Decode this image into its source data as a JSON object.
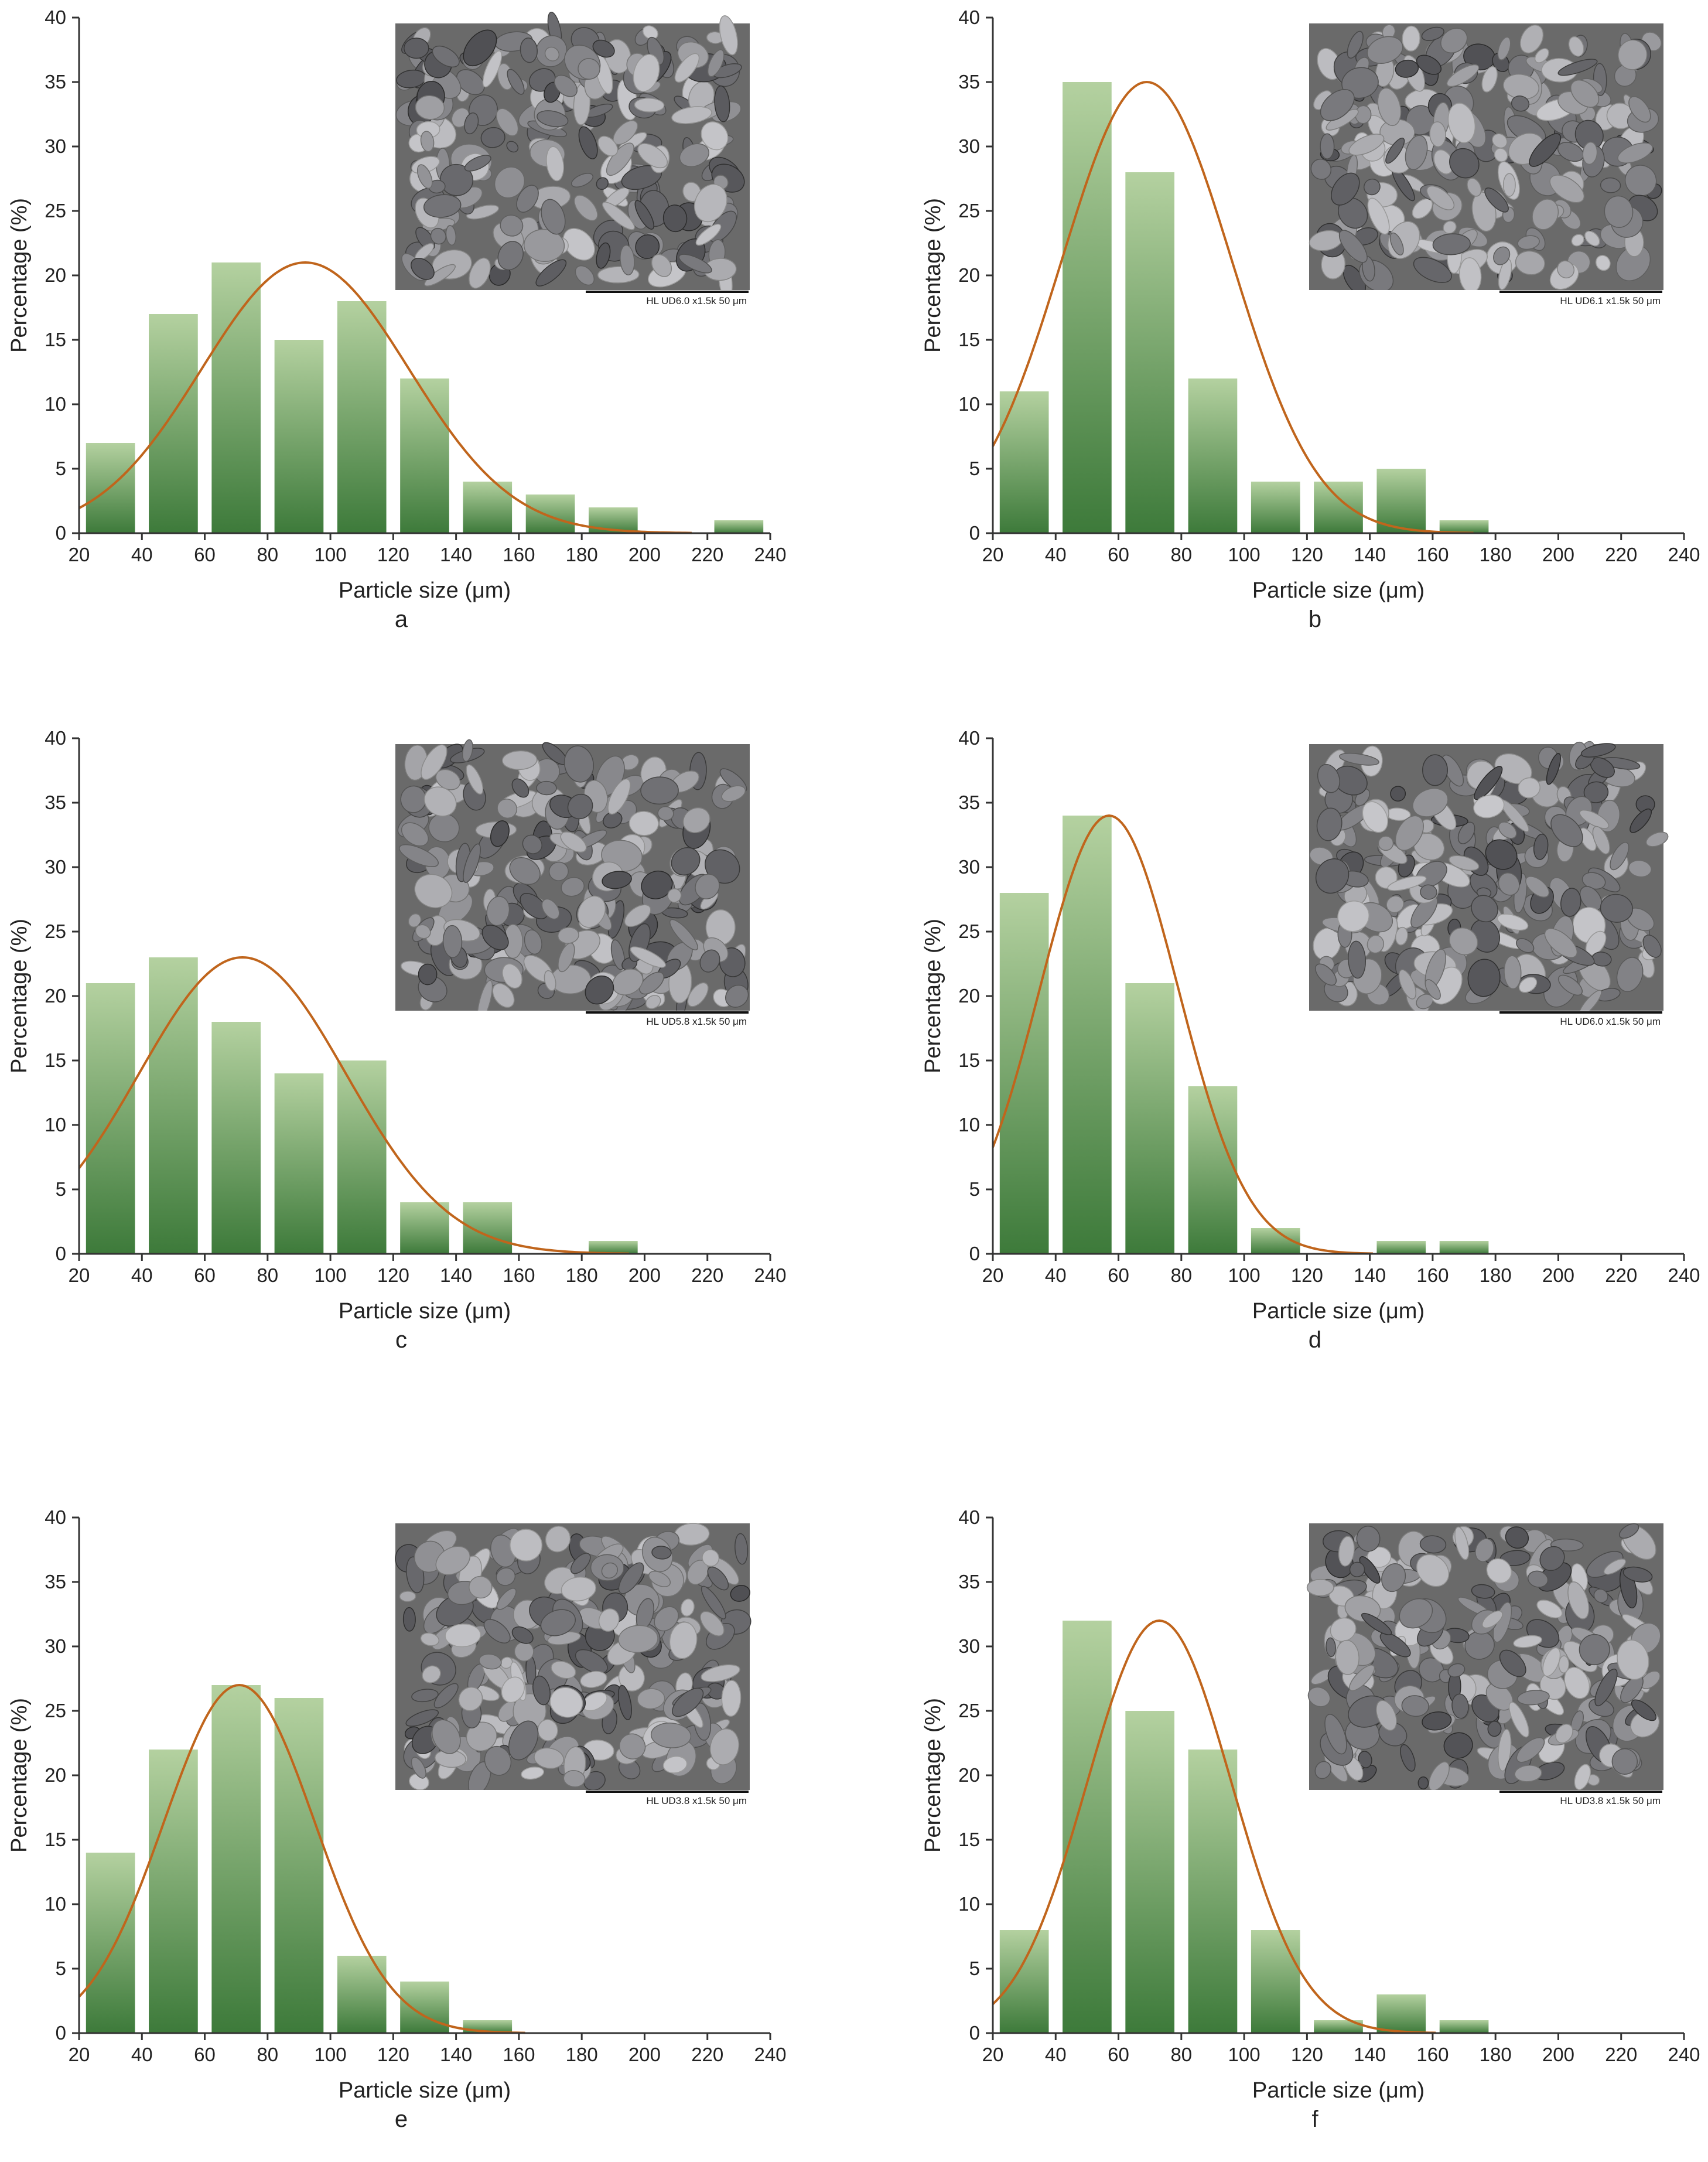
{
  "chart_data": [
    {
      "type": "bar",
      "panel": "a",
      "xlabel": "Particle size (μm)",
      "ylabel": "Percentage (%)",
      "xlim": [
        20,
        240
      ],
      "ylim": [
        0,
        40
      ],
      "xticks": [
        20,
        40,
        60,
        80,
        100,
        120,
        140,
        160,
        180,
        200,
        220,
        240
      ],
      "yticks": [
        0,
        5,
        10,
        15,
        20,
        25,
        30,
        35,
        40
      ],
      "bin_width": 20,
      "bins": [
        30,
        50,
        70,
        90,
        110,
        130,
        150,
        170,
        190,
        210,
        230
      ],
      "values": [
        7,
        17,
        21,
        15,
        18,
        12,
        4,
        3,
        2,
        0,
        1
      ],
      "fit": {
        "type": "gaussian",
        "peak_x": 92,
        "peak_y": 21,
        "sigma": 33
      },
      "sem_caption": "HL UD6.0   x1.5k      50 μm"
    },
    {
      "type": "bar",
      "panel": "b",
      "xlabel": "Particle size (μm)",
      "ylabel": "Percentage (%)",
      "xlim": [
        20,
        240
      ],
      "ylim": [
        0,
        40
      ],
      "xticks": [
        20,
        40,
        60,
        80,
        100,
        120,
        140,
        160,
        180,
        200,
        220,
        240
      ],
      "yticks": [
        0,
        5,
        10,
        15,
        20,
        25,
        30,
        35,
        40
      ],
      "bin_width": 20,
      "bins": [
        30,
        50,
        70,
        90,
        110,
        130,
        150,
        170,
        190,
        210,
        230
      ],
      "values": [
        11,
        35,
        28,
        12,
        4,
        4,
        5,
        1,
        0,
        0,
        0
      ],
      "fit": {
        "type": "gaussian",
        "peak_x": 69,
        "peak_y": 35,
        "sigma": 27
      },
      "sem_caption": "HL UD6.1   x1.5k      50 μm"
    },
    {
      "type": "bar",
      "panel": "c",
      "xlabel": "Particle size (μm)",
      "ylabel": "Percentage (%)",
      "xlim": [
        20,
        240
      ],
      "ylim": [
        0,
        40
      ],
      "xticks": [
        20,
        40,
        60,
        80,
        100,
        120,
        140,
        160,
        180,
        200,
        220,
        240
      ],
      "yticks": [
        0,
        5,
        10,
        15,
        20,
        25,
        30,
        35,
        40
      ],
      "bin_width": 20,
      "bins": [
        30,
        50,
        70,
        90,
        110,
        130,
        150,
        170,
        190,
        210,
        230
      ],
      "values": [
        21,
        23,
        18,
        14,
        15,
        4,
        4,
        0,
        1,
        0,
        0
      ],
      "fit": {
        "type": "gaussian",
        "peak_x": 72,
        "peak_y": 23,
        "sigma": 33
      },
      "sem_caption": "HL UD5.8   x1.5k      50 μm"
    },
    {
      "type": "bar",
      "panel": "d",
      "xlabel": "Particle size (μm)",
      "ylabel": "Percentage (%)",
      "xlim": [
        20,
        240
      ],
      "ylim": [
        0,
        40
      ],
      "xticks": [
        20,
        40,
        60,
        80,
        100,
        120,
        140,
        160,
        180,
        200,
        220,
        240
      ],
      "yticks": [
        0,
        5,
        10,
        15,
        20,
        25,
        30,
        35,
        40
      ],
      "bin_width": 20,
      "bins": [
        30,
        50,
        70,
        90,
        110,
        130,
        150,
        170,
        190,
        210,
        230
      ],
      "values": [
        28,
        34,
        21,
        13,
        2,
        0,
        1,
        1,
        0,
        0,
        0
      ],
      "fit": {
        "type": "gaussian",
        "peak_x": 57,
        "peak_y": 34,
        "sigma": 22
      },
      "sem_caption": "HL UD6.0   x1.5k      50 μm"
    },
    {
      "type": "bar",
      "panel": "e",
      "xlabel": "Particle size (μm)",
      "ylabel": "Percentage (%)",
      "xlim": [
        20,
        240
      ],
      "ylim": [
        0,
        40
      ],
      "xticks": [
        20,
        40,
        60,
        80,
        100,
        120,
        140,
        160,
        180,
        200,
        220,
        240
      ],
      "yticks": [
        0,
        5,
        10,
        15,
        20,
        25,
        30,
        35,
        40
      ],
      "bin_width": 20,
      "bins": [
        30,
        50,
        70,
        90,
        110,
        130,
        150,
        170,
        190,
        210,
        230
      ],
      "values": [
        14,
        22,
        27,
        26,
        6,
        4,
        1,
        0,
        0,
        0,
        0
      ],
      "fit": {
        "type": "gaussian",
        "peak_x": 71,
        "peak_y": 27,
        "sigma": 24
      },
      "sem_caption": "HL UD3.8   x1.5k      50 μm"
    },
    {
      "type": "bar",
      "panel": "f",
      "xlabel": "Particle size (μm)",
      "ylabel": "Percentage (%)",
      "xlim": [
        20,
        240
      ],
      "ylim": [
        0,
        40
      ],
      "xticks": [
        20,
        40,
        60,
        80,
        100,
        120,
        140,
        160,
        180,
        200,
        220,
        240
      ],
      "yticks": [
        0,
        5,
        10,
        15,
        20,
        25,
        30,
        35,
        40
      ],
      "bin_width": 20,
      "bins": [
        30,
        50,
        70,
        90,
        110,
        130,
        150,
        170,
        190,
        210,
        230
      ],
      "values": [
        8,
        32,
        25,
        22,
        8,
        1,
        3,
        1,
        0,
        0,
        0
      ],
      "fit": {
        "type": "gaussian",
        "peak_x": 73,
        "peak_y": 32,
        "sigma": 23
      },
      "sem_caption": "HL UD3.8   x1.5k      50 μm"
    }
  ],
  "colors": {
    "bar_top": "#b4d1a0",
    "bar_bottom": "#3d7a3a",
    "fit_line": "#c0651c",
    "axis": "#333333",
    "sem_bg": "#6a6a6a"
  }
}
